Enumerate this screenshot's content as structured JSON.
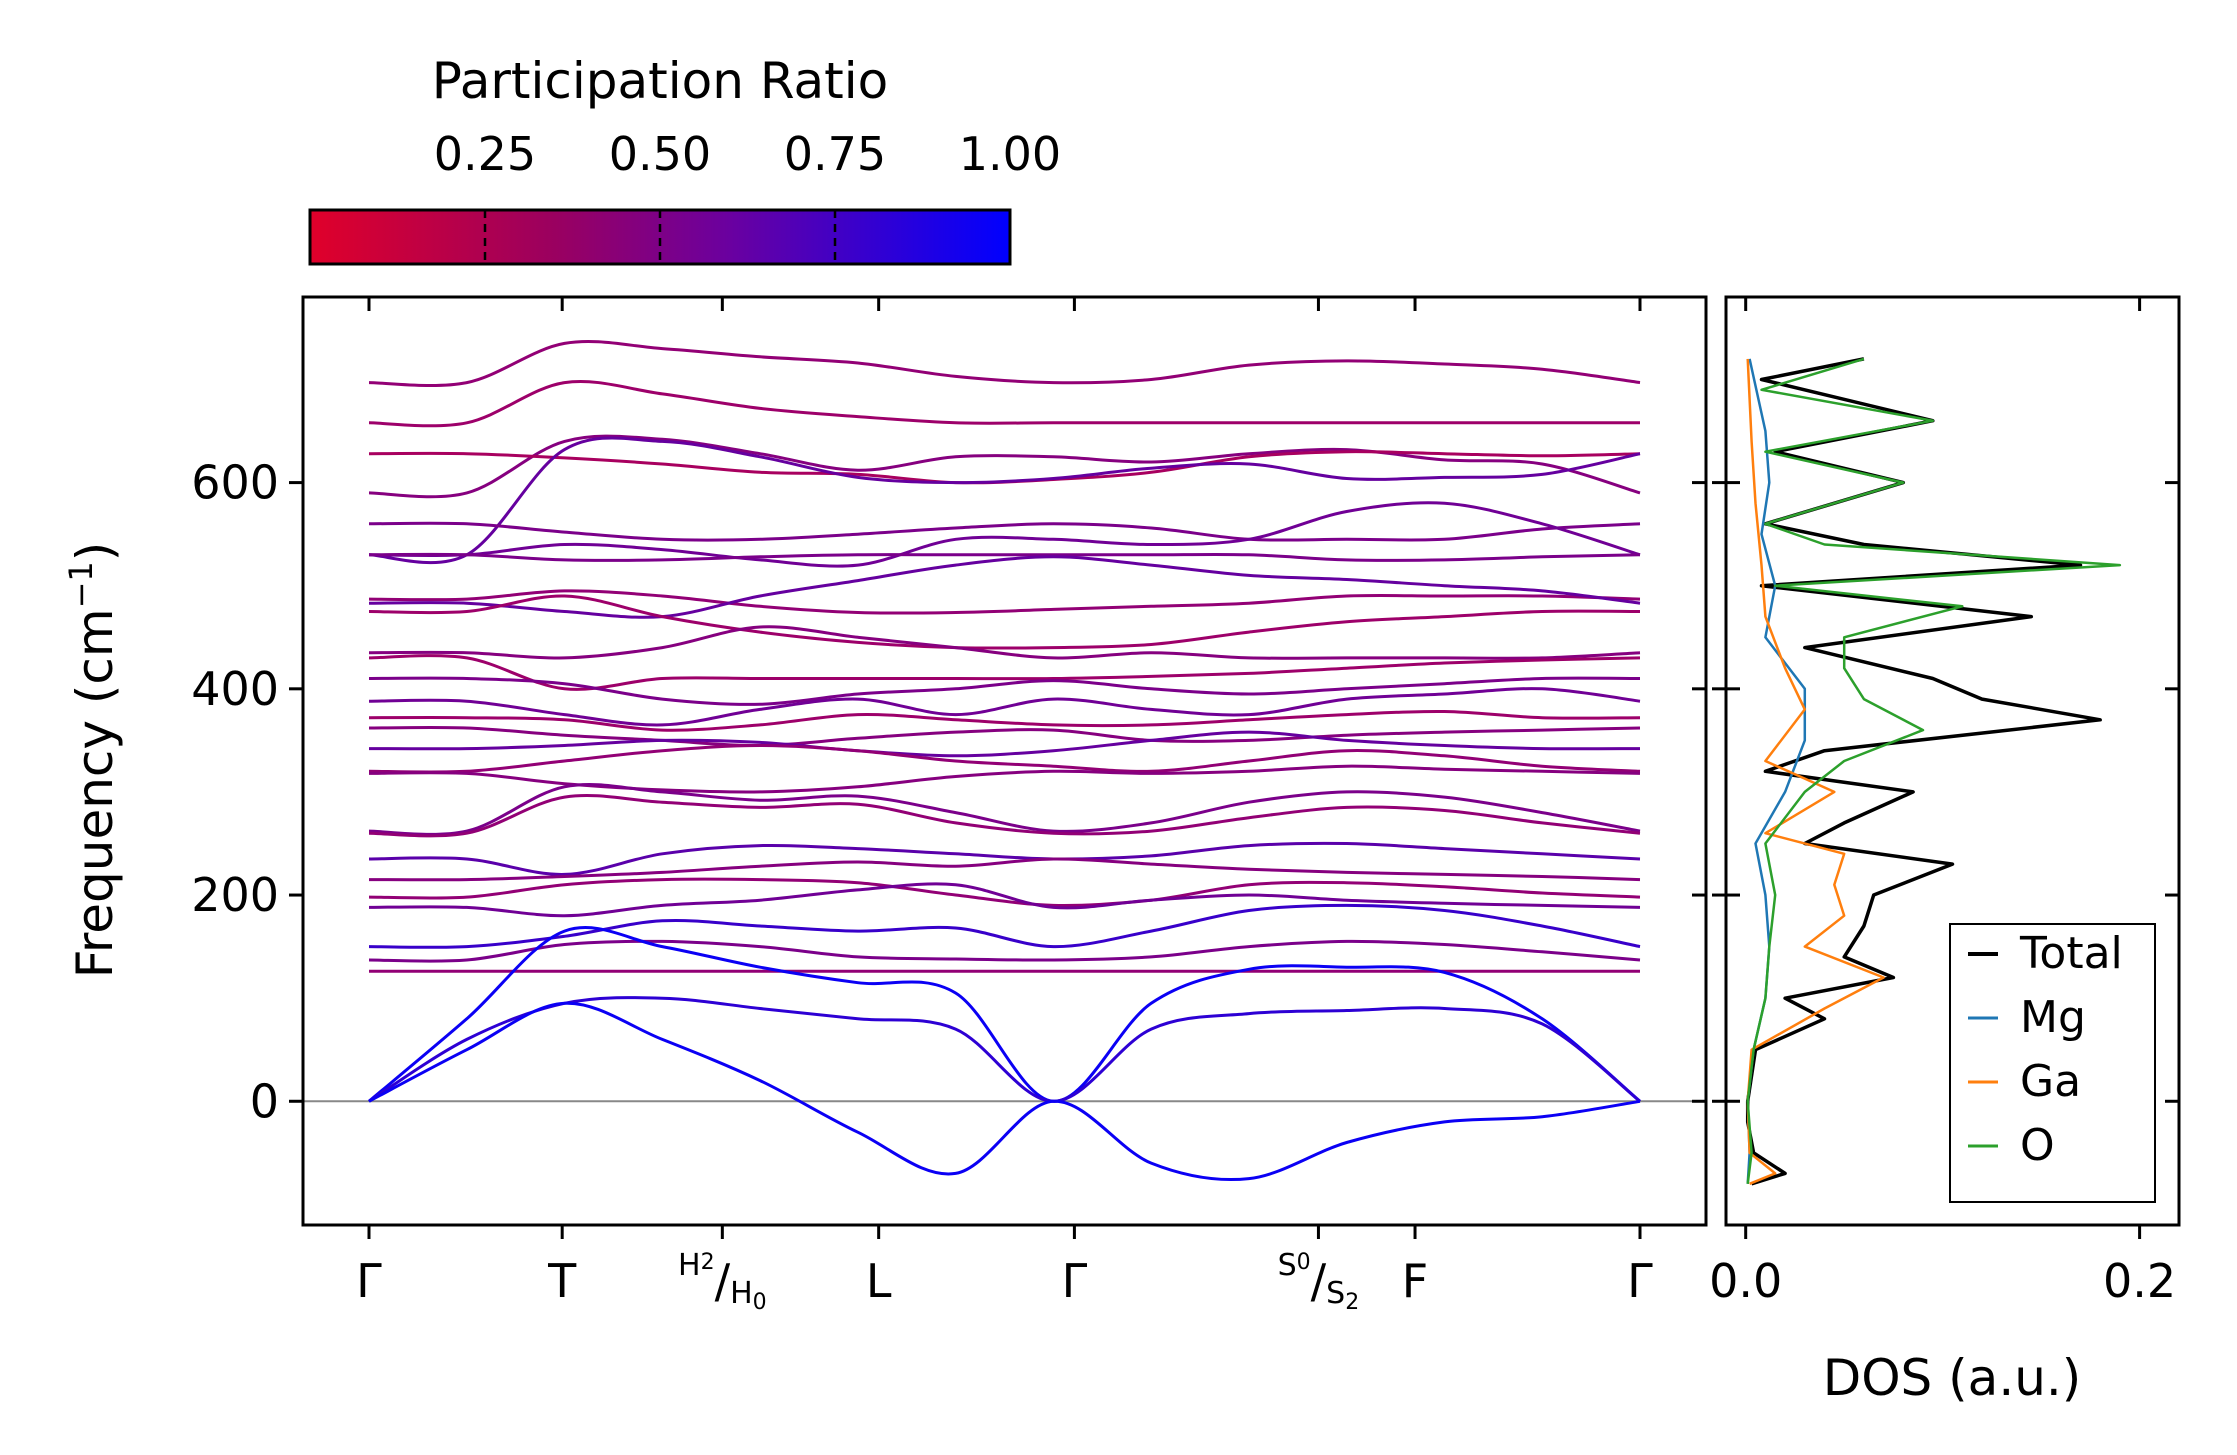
{
  "chart_data": [
    {
      "type": "line",
      "name": "phonon-dispersion",
      "ylabel_main": "Frequency (cm",
      "ylabel_sup": "−1",
      "ylabel_close": ")",
      "ylim": [
        -120,
        780
      ],
      "yticks": [
        0,
        200,
        400,
        600
      ],
      "x_points": [
        {
          "main": "Γ",
          "pos": 0.0
        },
        {
          "main": "T",
          "pos": 0.152
        },
        {
          "sup": "H",
          "sub1": "2",
          "slash": "/",
          "post": "H",
          "sub2": "0",
          "pos": 0.278
        },
        {
          "main": "L",
          "pos": 0.401
        },
        {
          "main": "Γ",
          "pos": 0.555
        },
        {
          "sup": "S",
          "sub1": "0",
          "slash": "/",
          "post": "S",
          "sub2": "2",
          "pos": 0.747
        },
        {
          "main": "F",
          "pos": 0.823
        },
        {
          "main": "Γ",
          "pos": 1.0
        }
      ],
      "colorbar": {
        "title": "Participation Ratio",
        "ticks": [
          "0.25",
          "0.50",
          "0.75",
          "1.00"
        ],
        "range": [
          0.0,
          1.0
        ],
        "colors": [
          "#e0002a",
          "#0000ff"
        ]
      },
      "bands": [
        {
          "pr": 0.35,
          "y": [
            697,
            697,
            735,
            730,
            722,
            716,
            703,
            697,
            700,
            714,
            718,
            715,
            710,
            697
          ]
        },
        {
          "pr": 0.3,
          "y": [
            658,
            658,
            697,
            686,
            672,
            664,
            658,
            658,
            658,
            658,
            658,
            658,
            658,
            658
          ]
        },
        {
          "pr": 0.4,
          "y": [
            590,
            590,
            640,
            642,
            628,
            612,
            625,
            625,
            620,
            628,
            632,
            622,
            618,
            590
          ]
        },
        {
          "pr": 0.25,
          "y": [
            628,
            628,
            624,
            618,
            610,
            608,
            600,
            603,
            610,
            625,
            630,
            628,
            626,
            628
          ]
        },
        {
          "pr": 0.55,
          "y": [
            530,
            530,
            632,
            640,
            625,
            605,
            600,
            604,
            614,
            618,
            604,
            605,
            608,
            628
          ]
        },
        {
          "pr": 0.45,
          "y": [
            560,
            560,
            552,
            545,
            545,
            550,
            556,
            560,
            556,
            545,
            545,
            545,
            555,
            560
          ]
        },
        {
          "pr": 0.5,
          "y": [
            530,
            530,
            540,
            535,
            525,
            520,
            545,
            545,
            540,
            545,
            572,
            580,
            560,
            530
          ]
        },
        {
          "pr": 0.45,
          "y": [
            530,
            530,
            525,
            525,
            528,
            530,
            530,
            530,
            530,
            530,
            525,
            525,
            528,
            530
          ]
        },
        {
          "pr": 0.35,
          "y": [
            487,
            487,
            495,
            490,
            480,
            474,
            474,
            477,
            480,
            483,
            490,
            490,
            490,
            487
          ]
        },
        {
          "pr": 0.55,
          "y": [
            483,
            483,
            475,
            470,
            490,
            505,
            520,
            528,
            520,
            510,
            506,
            500,
            495,
            483
          ]
        },
        {
          "pr": 0.3,
          "y": [
            475,
            475,
            490,
            470,
            455,
            445,
            440,
            440,
            443,
            455,
            465,
            470,
            475,
            475
          ]
        },
        {
          "pr": 0.4,
          "y": [
            435,
            435,
            430,
            440,
            460,
            450,
            440,
            430,
            435,
            430,
            430,
            430,
            430,
            435
          ]
        },
        {
          "pr": 0.3,
          "y": [
            430,
            430,
            400,
            410,
            410,
            410,
            410,
            410,
            412,
            415,
            420,
            425,
            428,
            430
          ]
        },
        {
          "pr": 0.45,
          "y": [
            410,
            410,
            405,
            390,
            385,
            395,
            400,
            408,
            400,
            395,
            400,
            405,
            410,
            410
          ]
        },
        {
          "pr": 0.5,
          "y": [
            388,
            388,
            375,
            365,
            380,
            390,
            375,
            390,
            380,
            375,
            390,
            395,
            400,
            388
          ]
        },
        {
          "pr": 0.3,
          "y": [
            372,
            372,
            370,
            360,
            365,
            375,
            370,
            365,
            365,
            370,
            375,
            378,
            372,
            372
          ]
        },
        {
          "pr": 0.4,
          "y": [
            362,
            362,
            355,
            350,
            345,
            352,
            358,
            360,
            350,
            350,
            355,
            358,
            360,
            362
          ]
        },
        {
          "pr": 0.55,
          "y": [
            342,
            342,
            345,
            350,
            348,
            340,
            335,
            340,
            350,
            358,
            350,
            345,
            342,
            342
          ]
        },
        {
          "pr": 0.35,
          "y": [
            320,
            320,
            330,
            340,
            345,
            340,
            330,
            325,
            320,
            330,
            340,
            335,
            325,
            320
          ]
        },
        {
          "pr": 0.4,
          "y": [
            318,
            318,
            308,
            302,
            300,
            305,
            315,
            320,
            318,
            320,
            325,
            322,
            320,
            318
          ]
        },
        {
          "pr": 0.45,
          "y": [
            262,
            262,
            305,
            300,
            292,
            296,
            280,
            262,
            270,
            290,
            300,
            295,
            280,
            262
          ]
        },
        {
          "pr": 0.35,
          "y": [
            260,
            260,
            295,
            290,
            285,
            288,
            270,
            260,
            262,
            275,
            285,
            282,
            270,
            260
          ]
        },
        {
          "pr": 0.6,
          "y": [
            235,
            235,
            220,
            240,
            248,
            245,
            240,
            235,
            238,
            248,
            250,
            245,
            240,
            235
          ]
        },
        {
          "pr": 0.4,
          "y": [
            215,
            215,
            218,
            222,
            228,
            232,
            228,
            235,
            230,
            225,
            222,
            220,
            218,
            215
          ]
        },
        {
          "pr": 0.35,
          "y": [
            198,
            198,
            210,
            215,
            215,
            212,
            200,
            190,
            195,
            210,
            212,
            208,
            202,
            198
          ]
        },
        {
          "pr": 0.5,
          "y": [
            188,
            188,
            180,
            190,
            195,
            205,
            210,
            188,
            195,
            200,
            195,
            192,
            190,
            188
          ]
        },
        {
          "pr": 0.75,
          "y": [
            150,
            150,
            160,
            175,
            170,
            165,
            168,
            150,
            165,
            185,
            190,
            185,
            170,
            150
          ]
        },
        {
          "pr": 0.45,
          "y": [
            137,
            137,
            152,
            155,
            150,
            140,
            138,
            137,
            140,
            150,
            155,
            152,
            145,
            137
          ]
        },
        {
          "pr": 0.35,
          "y": [
            126,
            126,
            126,
            126,
            126,
            126,
            126,
            126,
            126,
            126,
            126,
            126,
            126,
            126
          ]
        },
        {
          "pr": 0.95,
          "y": [
            0,
            80,
            165,
            150,
            130,
            115,
            105,
            0,
            95,
            128,
            130,
            125,
            80,
            0
          ]
        },
        {
          "pr": 0.8,
          "y": [
            0,
            60,
            95,
            100,
            90,
            80,
            70,
            0,
            70,
            85,
            88,
            90,
            75,
            0
          ]
        },
        {
          "pr": 0.95,
          "y": [
            0,
            50,
            95,
            60,
            20,
            -30,
            -70,
            0,
            -60,
            -75,
            -40,
            -20,
            -15,
            0
          ]
        }
      ]
    },
    {
      "type": "line",
      "name": "density-of-states",
      "xlabel": "DOS (a.u.)",
      "xlim": [
        -0.01,
        0.22
      ],
      "xticks": [
        "0.0",
        "0.2"
      ],
      "xtick_values": [
        0.0,
        0.2
      ],
      "legend": {
        "position": "lower-right"
      },
      "series": [
        {
          "name": "Total",
          "color": "#000000",
          "freq": [
            -80,
            -70,
            -50,
            -20,
            0,
            50,
            80,
            100,
            120,
            140,
            170,
            200,
            230,
            250,
            270,
            300,
            320,
            340,
            370,
            390,
            410,
            440,
            470,
            500,
            520,
            540,
            560,
            600,
            630,
            660,
            700,
            720
          ],
          "dos": [
            0.003,
            0.02,
            0.004,
            0.001,
            0.001,
            0.005,
            0.04,
            0.02,
            0.075,
            0.05,
            0.06,
            0.065,
            0.105,
            0.03,
            0.05,
            0.085,
            0.01,
            0.04,
            0.18,
            0.12,
            0.095,
            0.03,
            0.145,
            0.008,
            0.17,
            0.06,
            0.01,
            0.08,
            0.015,
            0.095,
            0.008,
            0.06
          ]
        },
        {
          "name": "Mg",
          "color": "#1f77b4",
          "freq": [
            -80,
            -50,
            0,
            50,
            100,
            150,
            200,
            250,
            300,
            350,
            400,
            450,
            500,
            550,
            600,
            650,
            720
          ],
          "dos": [
            0.001,
            0.002,
            0.001,
            0.004,
            0.01,
            0.012,
            0.01,
            0.005,
            0.02,
            0.03,
            0.03,
            0.01,
            0.015,
            0.008,
            0.012,
            0.01,
            0.002
          ]
        },
        {
          "name": "Ga",
          "color": "#ff7f0e",
          "freq": [
            -80,
            -70,
            -50,
            0,
            50,
            90,
            120,
            150,
            180,
            210,
            240,
            260,
            300,
            330,
            380,
            420,
            470,
            520,
            580,
            640,
            720
          ],
          "dos": [
            0.002,
            0.015,
            0.002,
            0.001,
            0.003,
            0.04,
            0.07,
            0.03,
            0.05,
            0.045,
            0.05,
            0.01,
            0.045,
            0.01,
            0.03,
            0.02,
            0.01,
            0.008,
            0.005,
            0.003,
            0.001
          ]
        },
        {
          "name": "O",
          "color": "#2ca02c",
          "freq": [
            -80,
            -50,
            0,
            50,
            100,
            150,
            200,
            250,
            300,
            330,
            360,
            390,
            420,
            450,
            480,
            500,
            520,
            540,
            560,
            600,
            630,
            660,
            690,
            720
          ],
          "dos": [
            0.001,
            0.003,
            0.001,
            0.004,
            0.01,
            0.012,
            0.015,
            0.01,
            0.03,
            0.05,
            0.09,
            0.06,
            0.05,
            0.05,
            0.11,
            0.015,
            0.19,
            0.04,
            0.01,
            0.08,
            0.01,
            0.095,
            0.008,
            0.06
          ]
        }
      ]
    }
  ]
}
